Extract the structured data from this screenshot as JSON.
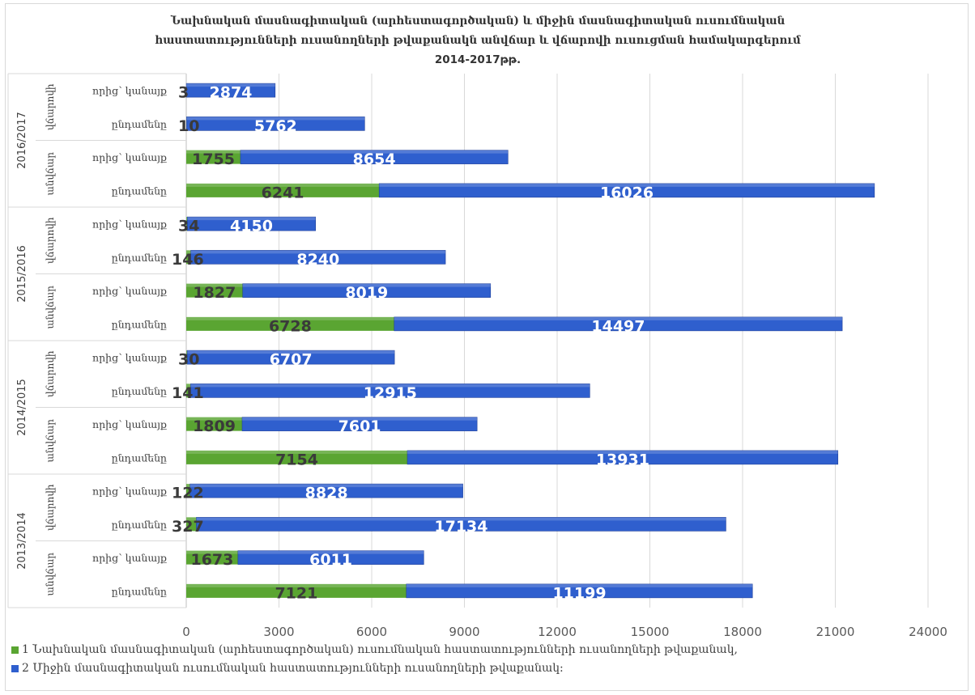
{
  "chart_title": {
    "line1": "Նախնական մասնագիտական (արհեստագործական) և միջին մասնագիտական ուսումնական",
    "line2": "հաստատությունների ուսանողների թվաքանակն անվճար և վճարովի ուսուցման համակարգերում",
    "line3": "2014-2017թթ."
  },
  "chart_data": {
    "type": "bar",
    "orientation": "horizontal",
    "stacked": true,
    "title": "Նախնական մասնագիտական (արհեստագործական) և միջին մասնագիտական ուսումնական հաստատությունների ուսանողների թվաքանակն անվճար և վճարովի ուսուցման համակարգերում 2014-2017թթ.",
    "xlim": [
      0,
      24000
    ],
    "x_ticks": [
      "0",
      "3000",
      "6000",
      "9000",
      "12000",
      "15000",
      "18000",
      "21000",
      "24000"
    ],
    "grid": true,
    "legend_position": "bottom-left",
    "colors": {
      "series1": "#5aa532",
      "series2": "#2f5fce",
      "label_dark": "#3a3a3a",
      "label_light": "#ffffff"
    },
    "groups": [
      {
        "year": "2016/2017",
        "subgroups": [
          {
            "label": "վճարովի",
            "rows": [
              {
                "label": "որից՝ կանայք",
                "v1": 3,
                "v2": 2874
              },
              {
                "label": "ընդամենը",
                "v1": 10,
                "v2": 5762
              }
            ]
          },
          {
            "label": "անվճար",
            "rows": [
              {
                "label": "որից՝ կանայք",
                "v1": 1755,
                "v2": 8654
              },
              {
                "label": "ընդամենը",
                "v1": 6241,
                "v2": 16026
              }
            ]
          }
        ]
      },
      {
        "year": "2015/2016",
        "subgroups": [
          {
            "label": "վճարովի",
            "rows": [
              {
                "label": "որից՝ կանայք",
                "v1": 34,
                "v2": 4150
              },
              {
                "label": "ընդամենը",
                "v1": 146,
                "v2": 8240
              }
            ]
          },
          {
            "label": "անվճար",
            "rows": [
              {
                "label": "որից՝ կանայք",
                "v1": 1827,
                "v2": 8019
              },
              {
                "label": "ընդամենը",
                "v1": 6728,
                "v2": 14497
              }
            ]
          }
        ]
      },
      {
        "year": "2014/2015",
        "subgroups": [
          {
            "label": "վճարովի",
            "rows": [
              {
                "label": "որից՝ կանայք",
                "v1": 30,
                "v2": 6707
              },
              {
                "label": "ընդամենը",
                "v1": 141,
                "v2": 12915
              }
            ]
          },
          {
            "label": "անվճար",
            "rows": [
              {
                "label": "որից՝ կանայք",
                "v1": 1809,
                "v2": 7601
              },
              {
                "label": "ընդամենը",
                "v1": 7154,
                "v2": 13931
              }
            ]
          }
        ]
      },
      {
        "year": "2013/2014",
        "subgroups": [
          {
            "label": "վճարովի",
            "rows": [
              {
                "label": "որից՝ կանայք",
                "v1": 122,
                "v2": 8828
              },
              {
                "label": "ընդամենը",
                "v1": 327,
                "v2": 17134
              }
            ]
          },
          {
            "label": "անվճար",
            "rows": [
              {
                "label": "որից՝ կանայք",
                "v1": 1673,
                "v2": 6011
              },
              {
                "label": "ընդամենը",
                "v1": 7121,
                "v2": 11199
              }
            ]
          }
        ]
      }
    ],
    "series": [
      {
        "name": "1 Նախնական մասնագիտական (արհեստագործական) ուսումնական հաստատությունների ուսանողների թվաքանակ,"
      },
      {
        "name": "2 Միջին մասնագիտական ուսումնական հաստատությունների ուսանողների թվաքանակ:"
      }
    ]
  }
}
